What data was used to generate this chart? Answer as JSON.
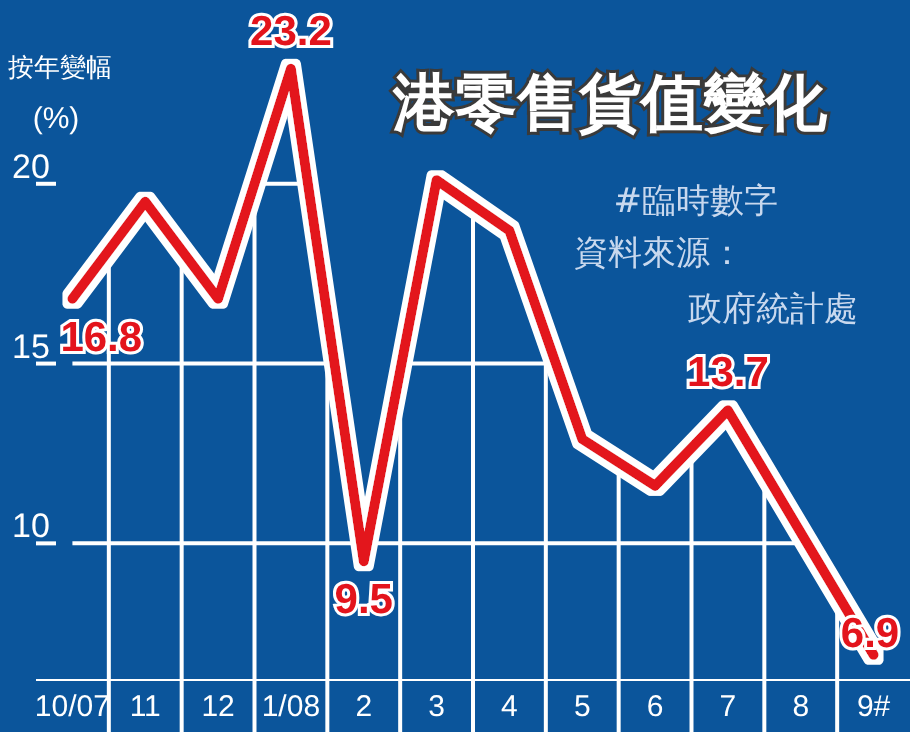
{
  "chart_data": {
    "type": "line",
    "title": "港零售貨值變化",
    "ylabel": "按年變幅\n(%)",
    "annotations": [
      "#臨時數字",
      "資料來源：政府統計處"
    ],
    "categories": [
      "10/07",
      "11",
      "12",
      "1/08",
      "2",
      "3",
      "4",
      "5",
      "6",
      "7",
      "8",
      "9#"
    ],
    "series": [
      {
        "color": "#e3141c",
        "values": [
          16.8,
          19.5,
          16.8,
          23.2,
          9.5,
          20.1,
          18.7,
          12.9,
          11.6,
          13.7,
          10.3,
          6.9
        ],
        "value_labels": [
          "16.8",
          null,
          null,
          "23.2",
          "9.5",
          null,
          null,
          null,
          null,
          "13.7",
          null,
          "6.9"
        ]
      }
    ],
    "ylim": [
      6.2,
      25
    ],
    "yticks": [
      10,
      15,
      20
    ],
    "grid": true,
    "marker": "none",
    "line_style": "solid"
  }
}
